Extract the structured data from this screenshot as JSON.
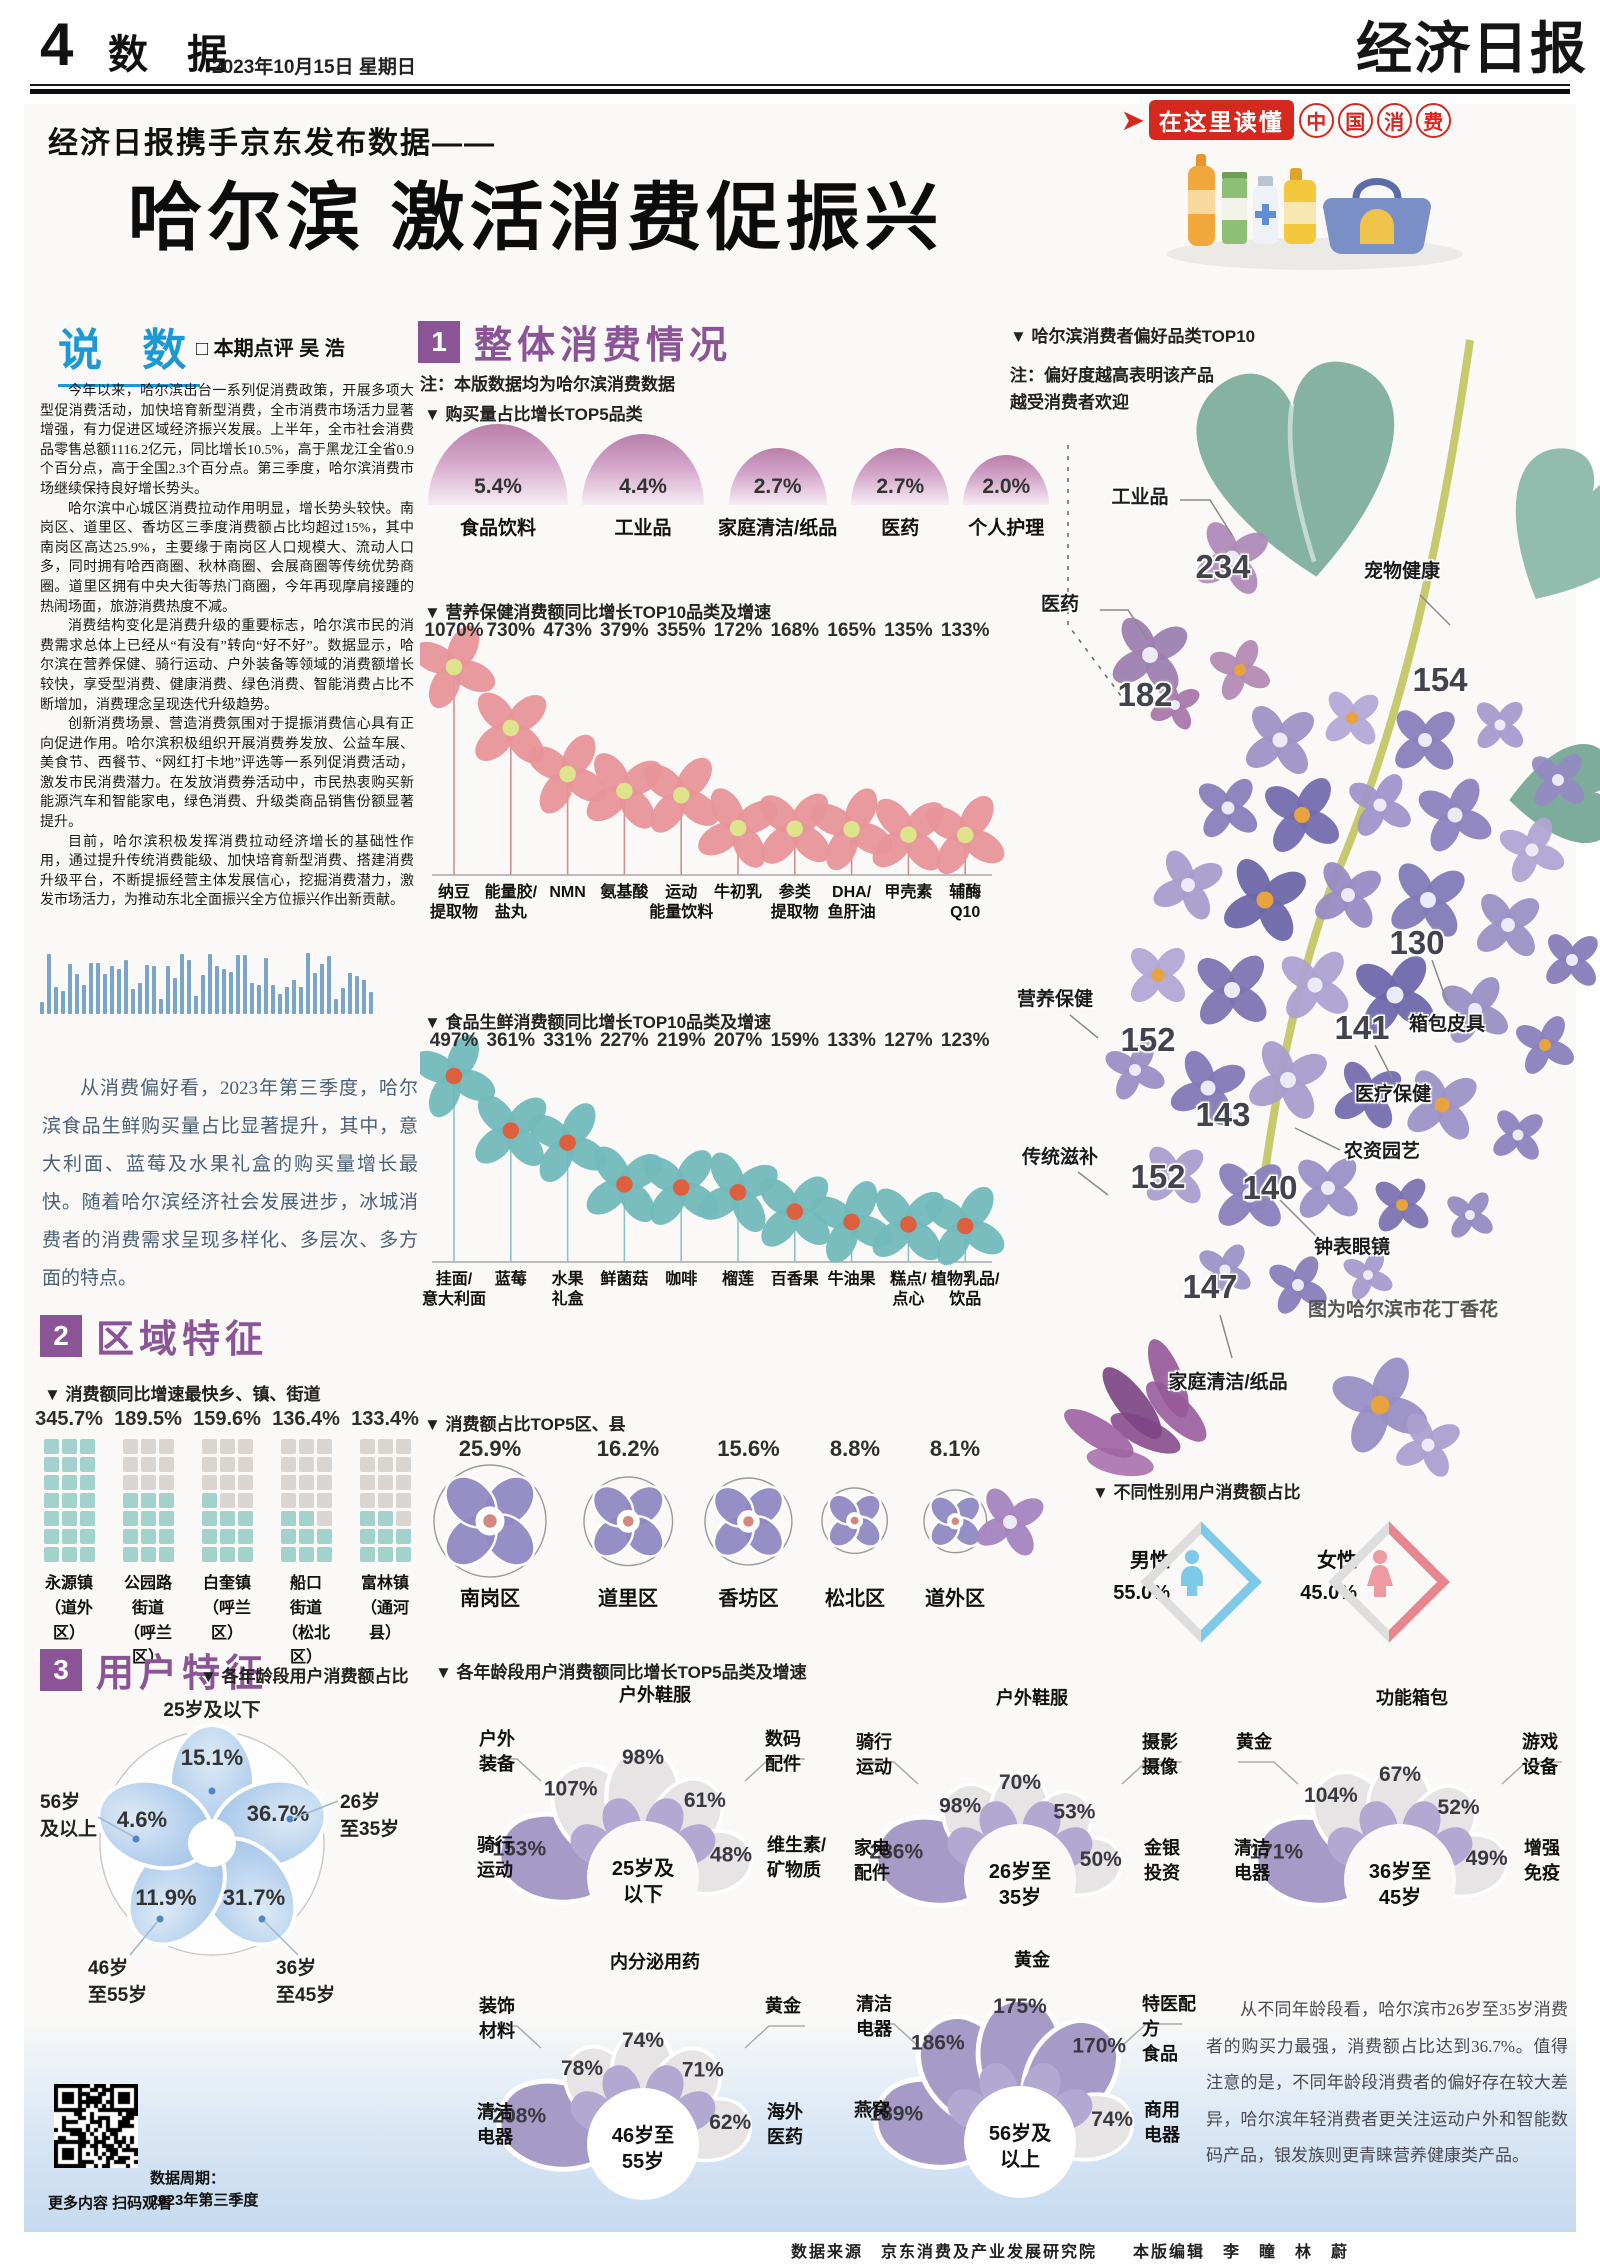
{
  "header": {
    "page_number": "4",
    "section_name": "数 据",
    "date": "2023年10月15日  星期日",
    "masthead": "经济日报",
    "kicker": "经济日报携手京东发布数据——",
    "headline": "哈尔滨 激活消费促振兴",
    "badge_arrow": "➤",
    "badge_text": "在这里读懂",
    "badge_circles": [
      "中",
      "国",
      "消",
      "费"
    ]
  },
  "commentary": {
    "title": "说 数",
    "byline": "□ 本期点评  吴  浩",
    "paragraphs": [
      "今年以来，哈尔滨出台一系列促消费政策，开展多项大型促消费活动，加快培育新型消费，全市消费市场活力显著增强，有力促进区域经济振兴发展。上半年，全市社会消费品零售总额1116.2亿元，同比增长10.5%，高于黑龙江全省0.9个百分点，高于全国2.3个百分点。第三季度，哈尔滨消费市场继续保持良好增长势头。",
      "哈尔滨中心城区消费拉动作用明显，增长势头较快。南岗区、道里区、香坊区三季度消费额占比均超过15%，其中南岗区高达25.9%，主要缘于南岗区人口规模大、流动人口多，同时拥有哈西商圈、秋林商圈、会展商圈等传统优势商圈。道里区拥有中央大街等热门商圈，今年再现摩肩接踵的热闹场面，旅游消费热度不减。",
      "消费结构变化是消费升级的重要标志，哈尔滨市民的消费需求总体上已经从“有没有”转向“好不好”。数据显示，哈尔滨在营养保健、骑行运动、户外装备等领域的消费额增长较快，享受型消费、健康消费、绿色消费、智能消费占比不断增加，消费理念呈现迭代升级趋势。",
      "创新消费场景、营造消费氛围对于提振消费信心具有正向促进作用。哈尔滨积极组织开展消费券发放、公益车展、美食节、西餐节、“网红打卡地”评选等一系列促消费活动，激发市民消费潜力。在发放消费券活动中，市民热衷购买新能源汽车和智能家电，绿色消费、升级类商品销售份额显著提升。",
      "目前，哈尔滨积极发挥消费拉动经济增长的基础性作用，通过提升传统消费能级、加快培育新型消费、搭建消费升级平台，不断提振经营主体发展信心，挖掘消费潜力，激发市场活力，为推动东北全面振兴全方位振兴作出新贡献。"
    ],
    "highlight": "从消费偏好看，2023年第三季度，哈尔滨食品生鲜购买量占比显著提升，其中，意大利面、蓝莓及水果礼盒的购买量增长最快。随着哈尔滨经济社会发展进步，冰城消费者的消费需求呈现多样化、多层次、多方面的特点。"
  },
  "overall": {
    "num": "1",
    "title": "整体消费情况",
    "note": "注：本版数据均为哈尔滨消费数据",
    "top5_purchase": {
      "title": "▼ 购买量占比增长TOP5品类",
      "items": [
        {
          "value": "5.4%",
          "label": "食品饮料"
        },
        {
          "value": "4.4%",
          "label": "工业品"
        },
        {
          "value": "2.7%",
          "label": "家庭清洁/纸品"
        },
        {
          "value": "2.7%",
          "label": "医药"
        },
        {
          "value": "2.0%",
          "label": "个人护理"
        }
      ]
    },
    "health": {
      "title": "▼ 营养保健消费额同比增长TOP10品类及增速",
      "items": [
        {
          "value": 1070,
          "display": "1070%",
          "label": "纳豆\n提取物"
        },
        {
          "value": 730,
          "display": "730%",
          "label": "能量胶/\n盐丸"
        },
        {
          "value": 473,
          "display": "473%",
          "label": "NMN"
        },
        {
          "value": 379,
          "display": "379%",
          "label": "氨基酸"
        },
        {
          "value": 355,
          "display": "355%",
          "label": "运动\n能量饮料"
        },
        {
          "value": 172,
          "display": "172%",
          "label": "牛初乳"
        },
        {
          "value": 168,
          "display": "168%",
          "label": "参类\n提取物"
        },
        {
          "value": 165,
          "display": "165%",
          "label": "DHA/\n鱼肝油"
        },
        {
          "value": 135,
          "display": "135%",
          "label": "甲壳素"
        },
        {
          "value": 133,
          "display": "133%",
          "label": "辅酶\nQ10"
        }
      ]
    },
    "fresh": {
      "title": "▼ 食品生鲜消费额同比增长TOP10品类及增速",
      "items": [
        {
          "value": 497,
          "display": "497%",
          "label": "挂面/\n意大利面"
        },
        {
          "value": 361,
          "display": "361%",
          "label": "蓝莓"
        },
        {
          "value": 331,
          "display": "331%",
          "label": "水果\n礼盒"
        },
        {
          "value": 227,
          "display": "227%",
          "label": "鲜菌菇"
        },
        {
          "value": 219,
          "display": "219%",
          "label": "咖啡"
        },
        {
          "value": 207,
          "display": "207%",
          "label": "榴莲"
        },
        {
          "value": 159,
          "display": "159%",
          "label": "百香果"
        },
        {
          "value": 133,
          "display": "133%",
          "label": "牛油果"
        },
        {
          "value": 127,
          "display": "127%",
          "label": "糕点/\n点心"
        },
        {
          "value": 123,
          "display": "123%",
          "label": "植物乳品/\n饮品"
        }
      ]
    },
    "districts": {
      "title": "▼ 消费额占比TOP5区、县",
      "items": [
        {
          "value": "25.9%",
          "pct": 25.9,
          "label": "南岗区"
        },
        {
          "value": "16.2%",
          "pct": 16.2,
          "label": "道里区"
        },
        {
          "value": "15.6%",
          "pct": 15.6,
          "label": "香坊区"
        },
        {
          "value": "8.8%",
          "pct": 8.8,
          "label": "松北区"
        },
        {
          "value": "8.1%",
          "pct": 8.1,
          "label": "道外区"
        }
      ]
    }
  },
  "region": {
    "num": "2",
    "title": "区域特征",
    "subtitle": "▼ 消费额同比增速最快乡、镇、街道",
    "items": [
      {
        "value": "345.7%",
        "pct": 345.7,
        "label": "永源镇\n（道外区）"
      },
      {
        "value": "189.5%",
        "pct": 189.5,
        "label": "公园路\n街道\n（呼兰区）"
      },
      {
        "value": "159.6%",
        "pct": 159.6,
        "label": "白奎镇\n（呼兰区）"
      },
      {
        "value": "136.4%",
        "pct": 136.4,
        "label": "船口\n街道\n（松北区）"
      },
      {
        "value": "133.4%",
        "pct": 133.4,
        "label": "富林镇\n（通河县）"
      }
    ]
  },
  "preference": {
    "title": "▼ 哈尔滨消费者偏好品类TOP10",
    "note": "注：偏好度越高表明该产品\n越受消费者欢迎",
    "items": [
      {
        "label": "工业品",
        "value": "234"
      },
      {
        "label": "医药",
        "value": "182"
      },
      {
        "label": "宠物健康",
        "value": "154"
      },
      {
        "label": "营养保健",
        "value": "152"
      },
      {
        "label": "箱包皮具",
        "value": "130"
      },
      {
        "label": "医疗保健",
        "value": "141"
      },
      {
        "label": "农资园艺",
        "value": "143"
      },
      {
        "label": "传统滋补",
        "value": "152"
      },
      {
        "label": "钟表眼镜",
        "value": "140"
      },
      {
        "label": "家庭清洁/纸品",
        "value": "147"
      }
    ],
    "caption": "图为哈尔滨市花丁香花"
  },
  "users": {
    "num": "3",
    "title": "用户特征",
    "age_share": {
      "title": "▼ 各年龄段用户消费额占比",
      "items": [
        {
          "label": "25岁及以下",
          "value": "15.1%"
        },
        {
          "label": "26岁\n至35岁",
          "value": "36.7%"
        },
        {
          "label": "36岁\n至45岁",
          "value": "31.7%"
        },
        {
          "label": "46岁\n至55岁",
          "value": "11.9%"
        },
        {
          "label": "56岁\n及以上",
          "value": "4.6%"
        }
      ]
    },
    "age_growth": {
      "title": "▼ 各年龄段用户消费额同比增长TOP5品类及增速",
      "fans": [
        {
          "center": "25岁及\n以下",
          "petals": [
            {
              "label": "骑行\n运动",
              "value": "153%",
              "hl": true
            },
            {
              "label": "户外\n装备",
              "value": "107%"
            },
            {
              "label": "户外鞋服",
              "value": "98%"
            },
            {
              "label": "数码\n配件",
              "value": "61%"
            },
            {
              "label": "维生素/\n矿物质",
              "value": "48%"
            }
          ]
        },
        {
          "center": "26岁至\n35岁",
          "petals": [
            {
              "label": "家电\n配件",
              "value": "286%",
              "hl": true
            },
            {
              "label": "骑行\n运动",
              "value": "98%"
            },
            {
              "label": "户外鞋服",
              "value": "70%"
            },
            {
              "label": "摄影\n摄像",
              "value": "53%"
            },
            {
              "label": "金银\n投资",
              "value": "50%"
            }
          ]
        },
        {
          "center": "36岁至\n45岁",
          "petals": [
            {
              "label": "清洁\n电器",
              "value": "171%",
              "hl": true
            },
            {
              "label": "黄金",
              "value": "104%"
            },
            {
              "label": "功能箱包",
              "value": "67%"
            },
            {
              "label": "游戏\n设备",
              "value": "52%"
            },
            {
              "label": "增强\n免疫",
              "value": "49%"
            }
          ]
        },
        {
          "center": "46岁至\n55岁",
          "petals": [
            {
              "label": "清洁\n电器",
              "value": "208%",
              "hl": true
            },
            {
              "label": "装饰\n材料",
              "value": "78%"
            },
            {
              "label": "内分泌用药",
              "value": "74%"
            },
            {
              "label": "黄金",
              "value": "71%"
            },
            {
              "label": "海外\n医药",
              "value": "62%"
            }
          ]
        },
        {
          "center": "56岁及\n以上",
          "petals": [
            {
              "label": "燕窝",
              "value": "189%",
              "hl": true
            },
            {
              "label": "清洁\n电器",
              "value": "186%",
              "hl": true
            },
            {
              "label": "黄金",
              "value": "175%",
              "hl": true
            },
            {
              "label": "特医配方\n食品",
              "value": "170%",
              "hl": true
            },
            {
              "label": "商用\n电器",
              "value": "74%"
            }
          ]
        }
      ]
    },
    "gender": {
      "title": "▼ 不同性别用户消费额占比",
      "male_label": "男性",
      "male_value": "55.0%",
      "female_label": "女性",
      "female_value": "45.0%"
    },
    "analysis": "从不同年龄段看，哈尔滨市26岁至35岁消费者的购买力最强，消费额占比达到36.7%。值得注意的是，不同年龄段消费者的偏好存在较大差异，哈尔滨年轻消费者更关注运动户外和智能数码产品，银发族则更青睐营养健康类产品。"
  },
  "qr": {
    "caption": "更多内容 扫码观看",
    "period": "数据周期：\n2023年第三季度"
  },
  "footer": {
    "text": "数据来源　京东消费及产业发展研究院　　本版编辑　李　瞳　林　蔚"
  }
}
